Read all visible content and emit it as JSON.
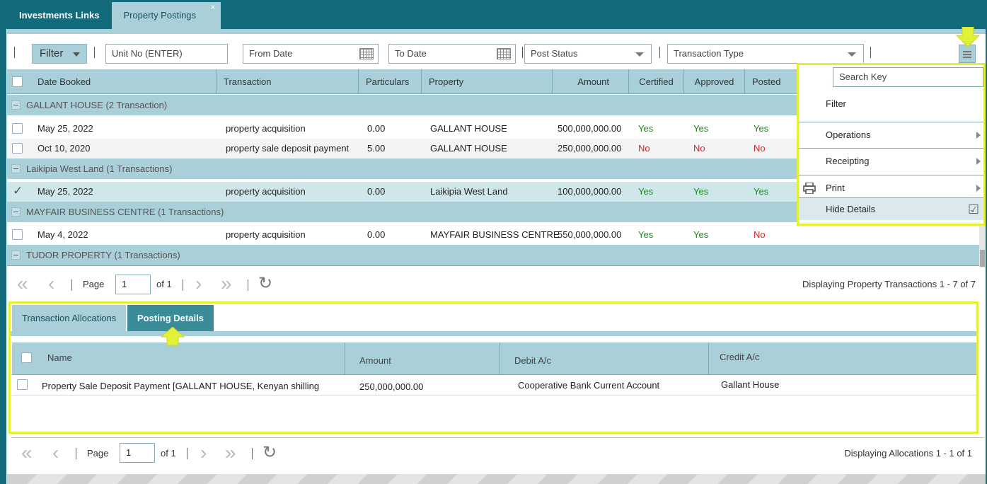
{
  "tabs": [
    {
      "label": "Investments Links"
    },
    {
      "label": "Property Postings",
      "close": "×"
    }
  ],
  "toolbar": {
    "filter_label": "Filter",
    "unit_no_placeholder": "Unit No (ENTER)",
    "from_date_placeholder": "From Date",
    "to_date_placeholder": "To Date",
    "post_status_placeholder": "Post Status",
    "transaction_type_placeholder": "Transaction Type"
  },
  "grid": {
    "columns": [
      "Date Booked",
      "Transaction",
      "Particulars",
      "Property",
      "Amount",
      "Certified",
      "Approved",
      "Posted"
    ],
    "groups": [
      {
        "label": "GALLANT HOUSE (2 Transaction)",
        "rows": [
          {
            "date": "May 25, 2022",
            "transaction": "property acquisition",
            "particulars": "0.00",
            "property": "GALLANT HOUSE",
            "amount": "500,000,000.00",
            "certified": "Yes",
            "approved": "Yes",
            "posted": "Yes"
          },
          {
            "date": "Oct 10, 2020",
            "transaction": "property sale deposit payment",
            "particulars": "5.00",
            "property": "GALLANT HOUSE",
            "amount": "250,000,000.00",
            "certified": "No",
            "approved": "No",
            "posted": "No"
          }
        ]
      },
      {
        "label": "Laikipia West Land (1 Transactions)",
        "rows": [
          {
            "date": "May 25, 2022",
            "transaction": "property acquisition",
            "particulars": "0.00",
            "property": "Laikipia West Land",
            "amount": "100,000,000.00",
            "certified": "Yes",
            "approved": "Yes",
            "posted": "Yes"
          }
        ]
      },
      {
        "label": "MAYFAIR BUSINESS CENTRE (1 Transactions)",
        "rows": [
          {
            "date": "May 4, 2022",
            "transaction": "property acquisition",
            "particulars": "0.00",
            "property": "MAYFAIR BUSINESS CENTRE",
            "amount": "550,000,000.00",
            "certified": "Yes",
            "approved": "Yes",
            "posted": "No"
          }
        ]
      },
      {
        "label": "TUDOR PROPERTY (1 Transactions)",
        "rows": []
      }
    ]
  },
  "pager_top": {
    "page_label": "Page",
    "page": "1",
    "of": "of 1",
    "info": "Displaying Property Transactions 1 - 7 of 7"
  },
  "bottom": {
    "tabs": [
      "Transaction Allocations",
      "Posting Details"
    ],
    "columns": [
      "Name",
      "Amount",
      "Debit A/c",
      "Credit A/c"
    ],
    "row": {
      "name": "Property Sale Deposit Payment [GALLANT HOUSE, Kenyan shilling",
      "amount": "250,000,000.00",
      "debit": "Cooperative Bank Current Account",
      "credit": "Gallant House"
    }
  },
  "pager_bottom": {
    "page_label": "Page",
    "page": "1",
    "of": "of 1",
    "info": "Displaying Allocations 1 - 1 of 1"
  },
  "menu": {
    "search_placeholder": "Search Key",
    "items": [
      "Filter",
      "Operations",
      "Receipting",
      "Print",
      "Hide Details"
    ]
  },
  "colors": {
    "accent": "#126a7a",
    "header": "#a9cfd8",
    "highlight": "#e3f038",
    "yes": "#1a8a1a",
    "no": "#e02020"
  }
}
